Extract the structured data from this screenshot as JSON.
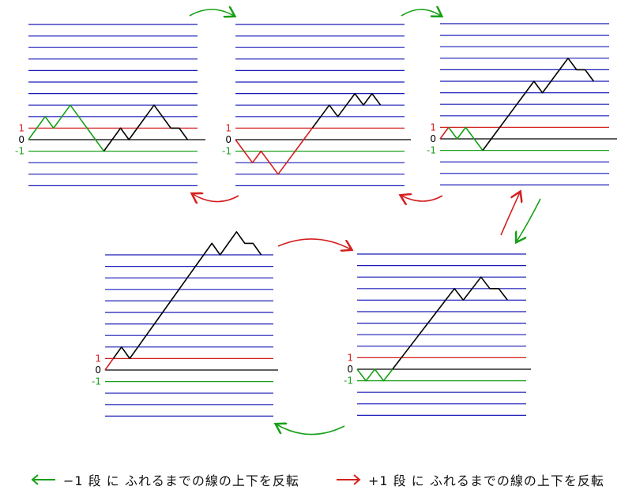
{
  "colors": {
    "blue_line": "#1a1ab8",
    "red_line": "#d42020",
    "green_line": "#18a018",
    "axis": "#000000",
    "path": "#000000"
  },
  "axis_labels": {
    "plus_one": "1",
    "zero": "0",
    "minus_one": "-1"
  },
  "panels": [
    {
      "id": "p1",
      "path": [
        [
          0,
          0
        ],
        [
          1,
          1
        ],
        [
          2,
          2
        ],
        [
          3,
          1
        ],
        [
          4,
          2
        ],
        [
          5,
          3
        ],
        [
          6,
          2
        ],
        [
          7,
          1
        ],
        [
          8,
          0
        ],
        [
          9,
          -1
        ],
        [
          10,
          0
        ],
        [
          11,
          1
        ],
        [
          12,
          0
        ],
        [
          13,
          1
        ],
        [
          14,
          2
        ],
        [
          15,
          3
        ],
        [
          16,
          2
        ],
        [
          17,
          1
        ],
        [
          18,
          1
        ],
        [
          19,
          0
        ]
      ],
      "segments": [
        {
          "from": 0,
          "to": 9,
          "color": "green"
        },
        {
          "from": 9,
          "to": 19,
          "color": "black"
        }
      ]
    },
    {
      "id": "p2",
      "path": [
        [
          0,
          0
        ],
        [
          1,
          -1
        ],
        [
          2,
          -2
        ],
        [
          3,
          -1
        ],
        [
          4,
          -2
        ],
        [
          5,
          -3
        ],
        [
          6,
          -2
        ],
        [
          7,
          -1
        ],
        [
          8,
          0
        ],
        [
          9,
          1
        ],
        [
          10,
          2
        ],
        [
          11,
          3
        ],
        [
          12,
          2
        ],
        [
          13,
          3
        ],
        [
          14,
          4
        ],
        [
          15,
          3
        ],
        [
          16,
          4
        ],
        [
          17,
          3
        ]
      ],
      "segments": [
        {
          "from": 0,
          "to": 9,
          "color": "red"
        },
        {
          "from": 9,
          "to": 17,
          "color": "black"
        }
      ]
    },
    {
      "id": "p3",
      "path": [
        [
          0,
          0
        ],
        [
          1,
          1
        ],
        [
          2,
          0
        ],
        [
          3,
          1
        ],
        [
          4,
          0
        ],
        [
          5,
          -1
        ],
        [
          6,
          0
        ],
        [
          7,
          1
        ],
        [
          8,
          2
        ],
        [
          9,
          3
        ],
        [
          10,
          4
        ],
        [
          11,
          5
        ],
        [
          12,
          4
        ],
        [
          13,
          5
        ],
        [
          14,
          6
        ],
        [
          15,
          7
        ],
        [
          16,
          6
        ],
        [
          17,
          6
        ],
        [
          18,
          5
        ]
      ],
      "segments": [
        {
          "from": 0,
          "to": 1,
          "color": "red"
        },
        {
          "from": 1,
          "to": 5,
          "color": "green"
        },
        {
          "from": 5,
          "to": 18,
          "color": "black"
        }
      ]
    },
    {
      "id": "p4",
      "path": [
        [
          0,
          0
        ],
        [
          1,
          1
        ],
        [
          2,
          2
        ],
        [
          3,
          1
        ],
        [
          4,
          2
        ],
        [
          5,
          3
        ],
        [
          6,
          4
        ],
        [
          7,
          5
        ],
        [
          8,
          6
        ],
        [
          9,
          7
        ],
        [
          10,
          8
        ],
        [
          11,
          9
        ],
        [
          12,
          10
        ],
        [
          13,
          11
        ],
        [
          14,
          10
        ],
        [
          15,
          11
        ],
        [
          16,
          12
        ],
        [
          17,
          11
        ],
        [
          18,
          11
        ],
        [
          19,
          10
        ]
      ],
      "segments": [
        {
          "from": 0,
          "to": 1,
          "color": "red"
        },
        {
          "from": 1,
          "to": 19,
          "color": "black"
        }
      ]
    },
    {
      "id": "p5",
      "path": [
        [
          0,
          0
        ],
        [
          1,
          -1
        ],
        [
          2,
          0
        ],
        [
          3,
          -1
        ],
        [
          4,
          0
        ],
        [
          5,
          1
        ],
        [
          6,
          2
        ],
        [
          7,
          3
        ],
        [
          8,
          4
        ],
        [
          9,
          5
        ],
        [
          10,
          6
        ],
        [
          11,
          7
        ],
        [
          12,
          6
        ],
        [
          13,
          7
        ],
        [
          14,
          8
        ],
        [
          15,
          7
        ],
        [
          16,
          7
        ],
        [
          17,
          6
        ]
      ],
      "segments": [
        {
          "from": 0,
          "to": 4,
          "color": "green"
        },
        {
          "from": 4,
          "to": 17,
          "color": "black"
        }
      ]
    }
  ],
  "transitions": [
    {
      "id": "arrow-p1-to-p2",
      "color": "green"
    },
    {
      "id": "arrow-p2-to-p1",
      "color": "red"
    },
    {
      "id": "arrow-p2-to-p3",
      "color": "green"
    },
    {
      "id": "arrow-p3-to-p2",
      "color": "red"
    },
    {
      "id": "arrow-p5-to-p3",
      "color": "red"
    },
    {
      "id": "arrow-p3-to-p5",
      "color": "green"
    },
    {
      "id": "arrow-p4-to-p5",
      "color": "red"
    },
    {
      "id": "arrow-p5-to-p4",
      "color": "green"
    }
  ],
  "legend": {
    "green_text": "−1 段 に ふれるまでの線の上下を反転",
    "red_text": "+1 段 に ふれるまでの線の上下を反転"
  }
}
